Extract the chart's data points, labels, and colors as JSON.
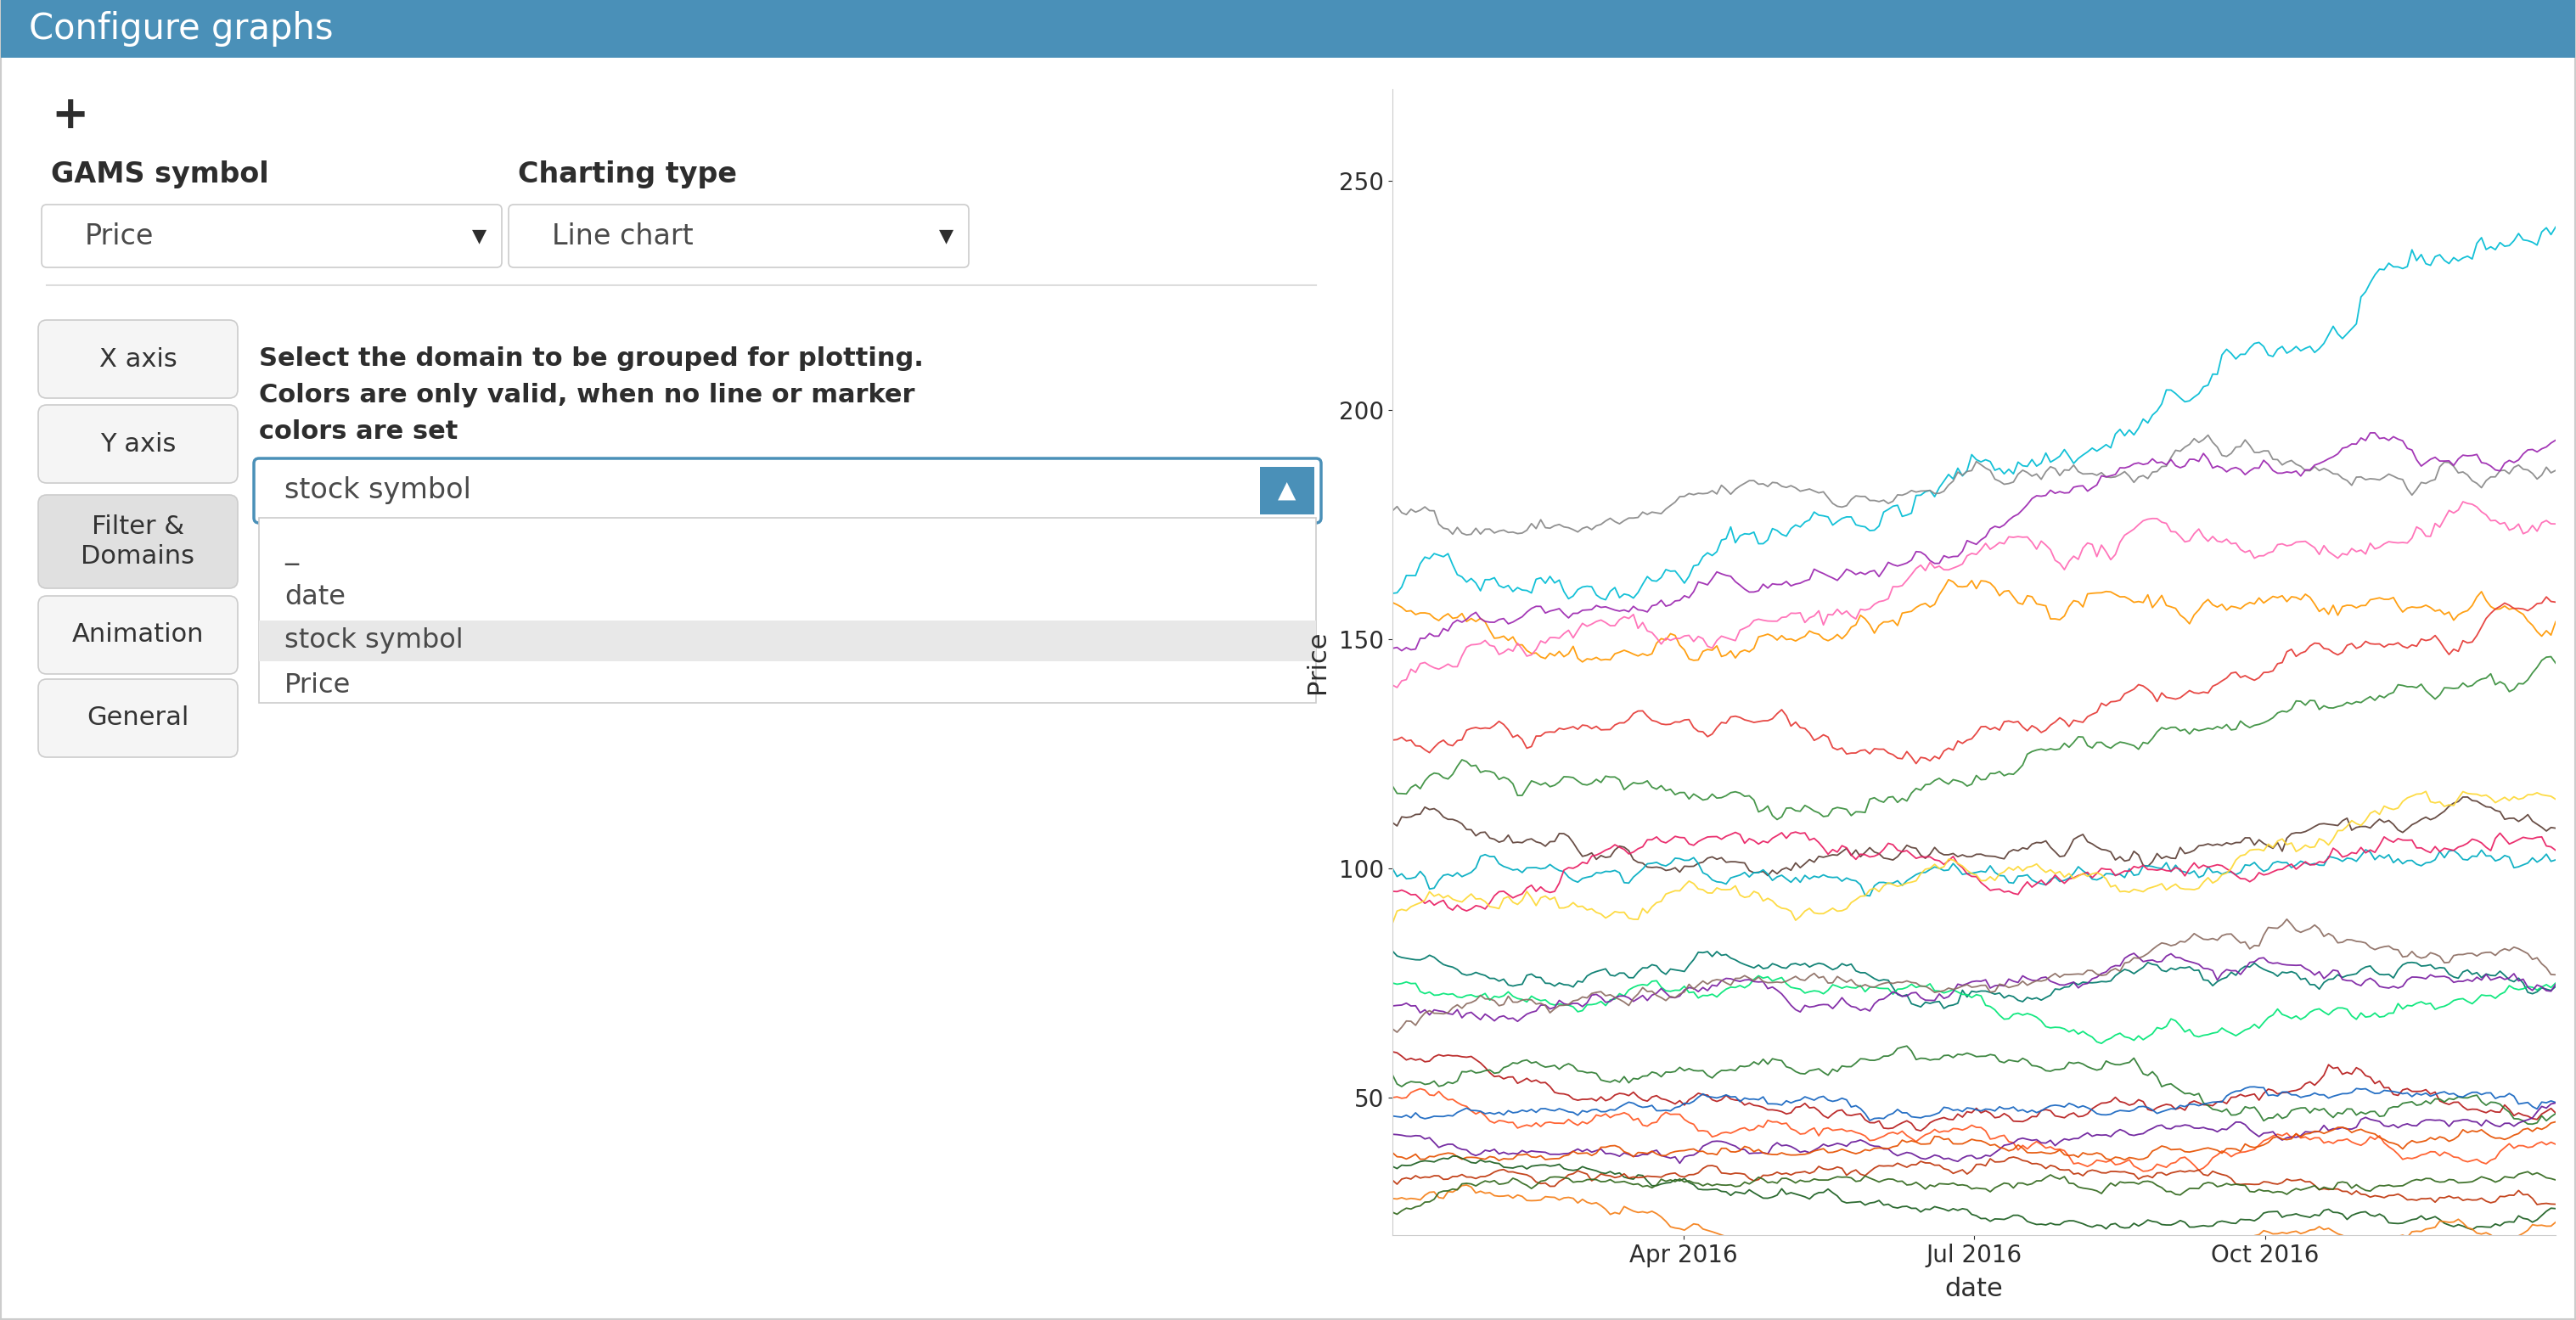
{
  "title": "Configure graphs",
  "header_bg": "#4a90b8",
  "header_text_color": "#ffffff",
  "bg_color": "#ffffff",
  "border_color": "#cccccc",
  "plus_symbol": "+",
  "gams_label": "GAMS symbol",
  "gams_value": "Price",
  "chart_label": "Charting type",
  "chart_value": "Line chart",
  "select_domain_text": "Select the domain to be grouped for plotting.\nColors are only valid, when no line or marker\ncolors are set",
  "x_axis_btn": "X axis",
  "y_axis_btn": "Y axis",
  "filter_btn": "Filter &\nDomains",
  "animation_btn": "Animation",
  "general_btn": "General",
  "dropdown_value": "stock symbol",
  "dropdown_options": [
    "_",
    "date",
    "stock symbol",
    "Price"
  ],
  "plot_xlabel": "date",
  "plot_ylabel": "Price",
  "plot_yticks": [
    50,
    100,
    150,
    200,
    250
  ],
  "plot_xtick_labels": [
    "Apr 2016",
    "Jul 2016",
    "Oct 2016"
  ],
  "line_specs": [
    [
      160,
      242,
      8,
      "#00bcd4"
    ],
    [
      178,
      183,
      5,
      "#888888"
    ],
    [
      158,
      174,
      6,
      "#ff9800"
    ],
    [
      148,
      160,
      5,
      "#9c27b0"
    ],
    [
      140,
      150,
      6,
      "#ff69b4"
    ],
    [
      128,
      135,
      5,
      "#e53935"
    ],
    [
      118,
      128,
      5,
      "#388e3c"
    ],
    [
      110,
      116,
      5,
      "#5d4037"
    ],
    [
      100,
      107,
      5,
      "#00acc1"
    ],
    [
      95,
      99,
      5,
      "#e91e63"
    ],
    [
      88,
      93,
      5,
      "#fdd835"
    ],
    [
      82,
      87,
      4,
      "#00796b"
    ],
    [
      75,
      79,
      4,
      "#00e676"
    ],
    [
      70,
      74,
      4,
      "#7b1fa2"
    ],
    [
      65,
      69,
      4,
      "#8d6e63"
    ],
    [
      60,
      64,
      4,
      "#b71c1c"
    ],
    [
      55,
      59,
      4,
      "#2e7d32"
    ],
    [
      50,
      54,
      4,
      "#ff5722"
    ],
    [
      46,
      49,
      3,
      "#1565c0"
    ],
    [
      42,
      46,
      3,
      "#6a1b9a"
    ],
    [
      38,
      42,
      3,
      "#e65100"
    ],
    [
      35,
      39,
      3,
      "#1b5e20"
    ],
    [
      32,
      35,
      3,
      "#bf360c"
    ],
    [
      28,
      32,
      3,
      "#f57f17"
    ],
    [
      25,
      29,
      3,
      "#33691e"
    ]
  ],
  "button_bg": "#f5f5f5",
  "button_border": "#cccccc",
  "button_text_color": "#333333",
  "filter_button_bg": "#e0e0e0",
  "dropdown_border_active": "#4a90b8",
  "label_color": "#2d2d2d",
  "text_color": "#4a4a4a",
  "divider_color": "#dddddd"
}
